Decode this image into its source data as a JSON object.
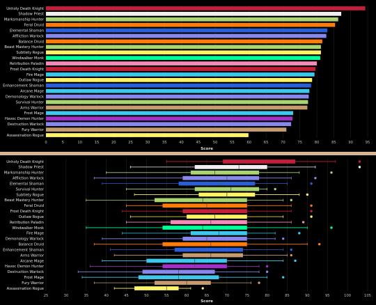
{
  "chart_data": [
    {
      "type": "bar",
      "orientation": "horizontal",
      "xlabel": "Score",
      "xlim": [
        0,
        95
      ],
      "xticks": [
        0,
        5,
        10,
        15,
        20,
        25,
        30,
        35,
        40,
        45,
        50,
        55,
        60,
        65,
        70,
        75,
        80,
        85,
        90,
        95
      ],
      "grid": true,
      "categories": [
        "Unholy Death Knight",
        "Shadow Priest",
        "Marksmanship Hunter",
        "Feral Druid",
        "Elemental Shaman",
        "Affliction Warlock",
        "Balance Druid",
        "Beast Mastery Hunter",
        "Subtlety Rogue",
        "Windwalker Monk",
        "Retribution Paladin",
        "Frost Death Knight",
        "Fire Mage",
        "Outlaw Rogue",
        "Enhancement Shaman",
        "Arcane Mage",
        "Demonology Warlock",
        "Survival Hunter",
        "Arms Warrior",
        "Frost Mage",
        "Havoc Demon Hunter",
        "Destruction Warlock",
        "Fury Warrior",
        "Assassination Rogue"
      ],
      "values": [
        94.3,
        87.2,
        86.3,
        85.4,
        83.1,
        82.8,
        81.6,
        81.2,
        81.2,
        81.0,
        80.0,
        79.6,
        79.3,
        78.6,
        78.3,
        77.8,
        77.6,
        77.4,
        77.2,
        73.0,
        72.8,
        72.4,
        71.0,
        59.8
      ],
      "colors": [
        "#c41e3a",
        "#f0f0f0",
        "#aad372",
        "#ff7c0a",
        "#2b5fd6",
        "#8788ee",
        "#ff7c0a",
        "#aad372",
        "#fff468",
        "#00ff98",
        "#f48cba",
        "#c41e3a",
        "#3fc7eb",
        "#fff468",
        "#2b5fd6",
        "#3fc7eb",
        "#8788ee",
        "#aad372",
        "#c69b6d",
        "#3fc7eb",
        "#a330c9",
        "#8788ee",
        "#c69b6d",
        "#fff468"
      ]
    },
    {
      "type": "box",
      "orientation": "horizontal",
      "xlabel": "Score",
      "xlim": [
        25,
        105
      ],
      "xticks": [
        25,
        30,
        35,
        40,
        45,
        50,
        55,
        60,
        65,
        70,
        75,
        80,
        85,
        90,
        95,
        100,
        105
      ],
      "grid": true,
      "categories": [
        "Unholy Death Knight",
        "Shadow Priest",
        "Marksmanship Hunter",
        "Affliction Warlock",
        "Elemental Shaman",
        "Survival Hunter",
        "Subtlety Rogue",
        "Beast Mastery Hunter",
        "Feral Druid",
        "Frost Death Knight",
        "Outlaw Rogue",
        "Retribution Paladin",
        "Windwalker Monk",
        "Fire Mage",
        "Demonology Warlock",
        "Balance Druid",
        "Enhancement Shaman",
        "Arms Warrior",
        "Arcane Mage",
        "Havoc Demon Hunter",
        "Destruction Warlock",
        "Frost Mage",
        "Fury Warrior",
        "Assassination Rogue"
      ],
      "colors": [
        "#c41e3a",
        "#f0f0f0",
        "#aad372",
        "#8788ee",
        "#2b5fd6",
        "#aad372",
        "#fff468",
        "#aad372",
        "#ff7c0a",
        "#c41e3a",
        "#fff468",
        "#f48cba",
        "#00ff98",
        "#3fc7eb",
        "#8788ee",
        "#ff7c0a",
        "#2b5fd6",
        "#c69b6d",
        "#3fc7eb",
        "#a330c9",
        "#8788ee",
        "#3fc7eb",
        "#c69b6d",
        "#fff468"
      ],
      "boxes": [
        {
          "min": 55,
          "q1": 69,
          "median": 74,
          "q3": 87,
          "max": 97,
          "outliers": [
            103
          ]
        },
        {
          "min": 46,
          "q1": 62,
          "median": 73,
          "q3": 80,
          "max": 92,
          "outliers": [
            103
          ]
        },
        {
          "min": 40,
          "q1": 61,
          "median": 67,
          "q3": 78,
          "max": 88,
          "outliers": [
            96
          ]
        },
        {
          "min": 37,
          "q1": 59,
          "median": 70,
          "q3": 78,
          "max": 86,
          "outliers": [
            92
          ]
        },
        {
          "min": 39,
          "q1": 58,
          "median": 68,
          "q3": 77,
          "max": 85,
          "outliers": [
            91
          ]
        },
        {
          "min": 45,
          "q1": 62,
          "median": 71,
          "q3": 78,
          "max": 80,
          "outliers": [
            82
          ]
        },
        {
          "min": 47,
          "q1": 63,
          "median": 70,
          "q3": 77,
          "max": 88,
          "outliers": [
            90
          ]
        },
        {
          "min": 35,
          "q1": 52,
          "median": 64,
          "q3": 75,
          "max": 84,
          "outliers": [
            86
          ]
        },
        {
          "min": 45,
          "q1": 54,
          "median": 65,
          "q3": 75,
          "max": 86,
          "outliers": [
            91
          ]
        },
        {
          "min": 44,
          "q1": 59,
          "median": 66,
          "q3": 75,
          "max": 86,
          "outliers": [
            91
          ]
        },
        {
          "min": 46,
          "q1": 60,
          "median": 67,
          "q3": 75,
          "max": 84,
          "outliers": [
            91
          ]
        },
        {
          "min": 45,
          "q1": 56,
          "median": 66,
          "q3": 75,
          "max": 86,
          "outliers": [
            89
          ]
        },
        {
          "min": 35,
          "q1": 54,
          "median": 64,
          "q3": 75,
          "max": 90,
          "outliers": [
            96
          ]
        },
        {
          "min": 44,
          "q1": 61,
          "median": 68,
          "q3": 75,
          "max": 82,
          "outliers": [
            88
          ]
        },
        {
          "min": 39,
          "q1": 59,
          "median": 65,
          "q3": 75,
          "max": 82,
          "outliers": [
            84
          ]
        },
        {
          "min": 37,
          "q1": 54,
          "median": 66,
          "q3": 75,
          "max": 90,
          "outliers": [
            93
          ]
        },
        {
          "min": 41,
          "q1": 57,
          "median": 63,
          "q3": 74,
          "max": 84,
          "outliers": [
            86
          ]
        },
        {
          "min": 42,
          "q1": 59,
          "median": 66,
          "q3": 74,
          "max": 85,
          "outliers": [
            86
          ]
        },
        {
          "min": 39,
          "q1": 50,
          "median": 62,
          "q3": 70,
          "max": 84,
          "outliers": [
            87
          ]
        },
        {
          "min": 36,
          "q1": 54,
          "median": 62,
          "q3": 70,
          "max": 78,
          "outliers": [
            80
          ]
        },
        {
          "min": 33,
          "q1": 49,
          "median": 58,
          "q3": 67,
          "max": 78,
          "outliers": [
            80
          ]
        },
        {
          "min": 34,
          "q1": 48,
          "median": 58,
          "q3": 68,
          "max": 80,
          "outliers": [
            84
          ]
        },
        {
          "min": 37,
          "q1": 52,
          "median": 60,
          "q3": 66,
          "max": 76,
          "outliers": [
            78
          ]
        },
        {
          "min": 42,
          "q1": 47,
          "median": 55,
          "q3": 58,
          "max": 61,
          "outliers": [
            64
          ]
        }
      ]
    }
  ]
}
